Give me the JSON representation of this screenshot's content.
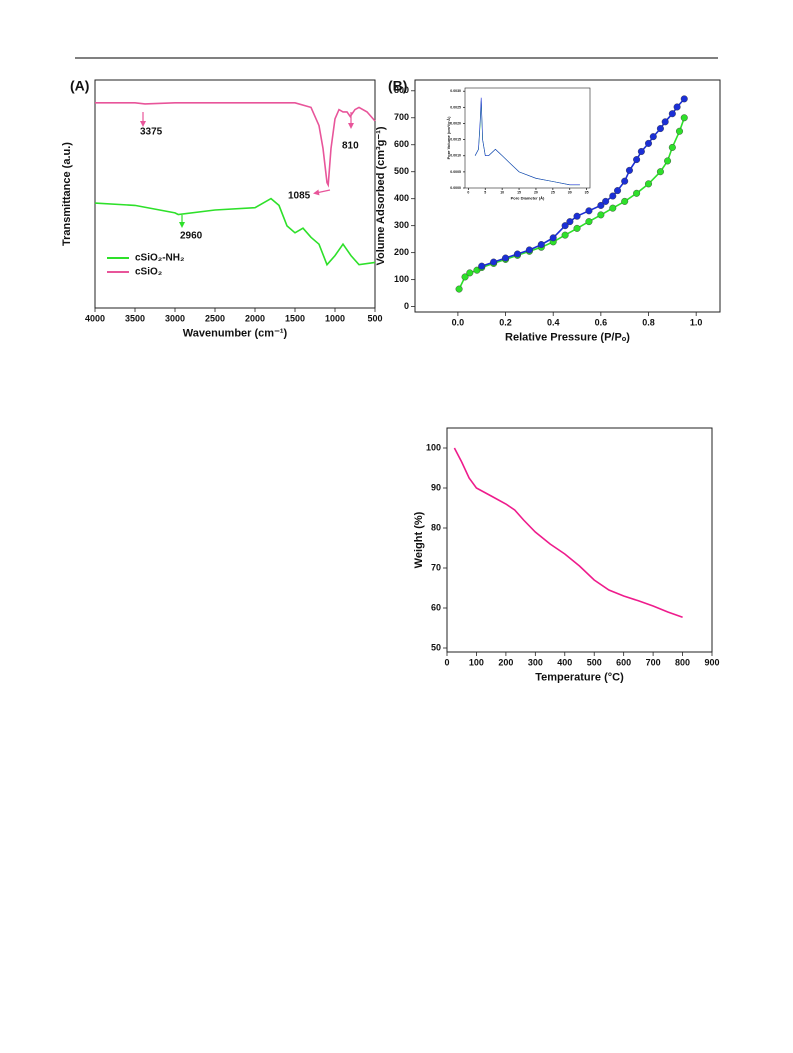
{
  "chart_data": [
    {
      "type": "line",
      "panel": "(A)",
      "xlabel": "Wavenumber (cm⁻¹)",
      "ylabel": "Transmittance (a.u.)",
      "xlim": [
        4000,
        500
      ],
      "xticks": [
        4000,
        3500,
        3000,
        2500,
        2000,
        1500,
        1000,
        500
      ],
      "ylim": [
        0,
        100
      ],
      "annotations": [
        "3375",
        "810",
        "1085",
        "2960"
      ],
      "series": [
        {
          "name": "cSiO₂-NH₂",
          "color": "#2ee02a",
          "x": [
            4000,
            3500,
            3000,
            2960,
            2500,
            2000,
            1800,
            1700,
            1600,
            1500,
            1400,
            1300,
            1200,
            1100,
            1000,
            900,
            800,
            700,
            500
          ],
          "values": [
            46,
            45,
            41.7,
            41,
            43,
            44,
            48,
            45,
            36,
            33,
            35,
            31,
            28,
            19,
            23,
            28,
            23,
            19,
            20
          ]
        },
        {
          "name": "cSiO₂",
          "color": "#e8559a",
          "x": [
            4000,
            3500,
            3375,
            3000,
            2500,
            2000,
            1500,
            1300,
            1200,
            1150,
            1100,
            1085,
            1050,
            1000,
            950,
            900,
            850,
            810,
            750,
            700,
            600,
            500
          ],
          "values": [
            90,
            90,
            89.5,
            90,
            90,
            90,
            90,
            88,
            80,
            70,
            55,
            54,
            70,
            83,
            87,
            86,
            86,
            84,
            87,
            88,
            86,
            82
          ]
        }
      ],
      "legend": "lower-left"
    },
    {
      "type": "line",
      "panel": "(B)",
      "xlabel": "Relative Pressure (P/Pₒ)",
      "ylabel": "Volume Adsorbed (cm³g⁻¹)",
      "xlim": [
        -0.18,
        1.1
      ],
      "xticks": [
        {
          "value": 0,
          "label": "0.0"
        },
        {
          "value": 0.2,
          "label": "0.2"
        },
        {
          "value": 0.4,
          "label": "0.4"
        },
        {
          "value": 0.6,
          "label": "0.6"
        },
        {
          "value": 0.8,
          "label": "0.8"
        },
        {
          "value": 1,
          "label": "1.0"
        }
      ],
      "ylim": [
        -20,
        840
      ],
      "yticks": [
        0,
        100,
        200,
        300,
        400,
        500,
        600,
        700,
        800
      ],
      "markers": true,
      "series": [
        {
          "color": "#2ee02a",
          "x": [
            0.005,
            0.03,
            0.05,
            0.08,
            0.1,
            0.15,
            0.2,
            0.25,
            0.3,
            0.35,
            0.4,
            0.45,
            0.5,
            0.55,
            0.6,
            0.65,
            0.7,
            0.75,
            0.8,
            0.85,
            0.88,
            0.9,
            0.93,
            0.95
          ],
          "values": [
            65,
            110,
            125,
            135,
            145,
            160,
            175,
            190,
            205,
            220,
            240,
            265,
            290,
            315,
            340,
            365,
            390,
            420,
            455,
            500,
            540,
            590,
            650,
            700
          ]
        },
        {
          "color": "#1b2fd6",
          "x": [
            0.95,
            0.92,
            0.9,
            0.87,
            0.85,
            0.82,
            0.8,
            0.77,
            0.75,
            0.72,
            0.7,
            0.67,
            0.65,
            0.62,
            0.6,
            0.55,
            0.5,
            0.47,
            0.45,
            0.4,
            0.35,
            0.3,
            0.25,
            0.2,
            0.15,
            0.1
          ],
          "values": [
            770,
            740,
            715,
            685,
            660,
            630,
            605,
            575,
            545,
            505,
            465,
            430,
            410,
            390,
            375,
            355,
            335,
            315,
            300,
            255,
            230,
            210,
            195,
            180,
            165,
            150
          ]
        }
      ]
    },
    {
      "type": "line",
      "xlabel": "Pore Diameter (Å)",
      "ylabel": "Pore Volume (cm³/g·Å)",
      "xlim": [
        -1,
        36
      ],
      "xticks": [
        0,
        5,
        10,
        15,
        20,
        25,
        30,
        35
      ],
      "ylim": [
        0,
        0.0031
      ],
      "yticks": [
        {
          "value": 0,
          "label": "0.0000"
        },
        {
          "value": 0.0005,
          "label": "0.0005"
        },
        {
          "value": 0.001,
          "label": "0.0010"
        },
        {
          "value": 0.0015,
          "label": "0.0015"
        },
        {
          "value": 0.002,
          "label": "0.0020"
        },
        {
          "value": 0.0025,
          "label": "0.0025"
        },
        {
          "value": 0.003,
          "label": "0.0030"
        }
      ],
      "series": [
        {
          "color": "#2ee02a",
          "x": [
            2,
            3,
            3.5,
            3.8,
            4.2,
            5,
            6,
            7,
            8,
            9,
            10,
            12,
            15,
            20,
            25,
            30,
            33
          ],
          "values": [
            0.001,
            0.0012,
            0.002,
            0.0027,
            0.0015,
            0.001,
            0.001,
            0.0011,
            0.0012,
            0.0011,
            0.001,
            0.0008,
            0.0005,
            0.0003,
            0.0002,
            0.0001,
            0.0001
          ]
        },
        {
          "color": "#1b2fd6",
          "x": [
            2,
            3,
            3.5,
            3.8,
            4.2,
            5,
            6,
            7,
            8,
            9,
            10,
            12,
            15,
            20,
            25,
            30,
            33
          ],
          "values": [
            0.001,
            0.0012,
            0.0021,
            0.0028,
            0.0015,
            0.001,
            0.001,
            0.0011,
            0.0012,
            0.0011,
            0.001,
            0.0008,
            0.0005,
            0.0003,
            0.0002,
            0.0001,
            0.0001
          ]
        }
      ]
    },
    {
      "type": "line",
      "xlabel": "Temperature (°C)",
      "ylabel": "Weight (%)",
      "xlim": [
        0,
        900
      ],
      "xticks": [
        0,
        100,
        200,
        300,
        400,
        500,
        600,
        700,
        800,
        900
      ],
      "ylim": [
        49,
        105
      ],
      "yticks": [
        50,
        60,
        70,
        80,
        90,
        100
      ],
      "series": [
        {
          "color": "#ee1c8c",
          "x": [
            25,
            50,
            75,
            100,
            150,
            200,
            230,
            260,
            300,
            350,
            400,
            450,
            500,
            550,
            600,
            650,
            700,
            750,
            800
          ],
          "values": [
            100,
            96.5,
            92.5,
            90,
            88,
            86,
            84.5,
            82,
            79,
            76,
            73.5,
            70.5,
            67,
            64.5,
            63,
            61.8,
            60.5,
            59,
            57.7
          ]
        }
      ]
    }
  ]
}
